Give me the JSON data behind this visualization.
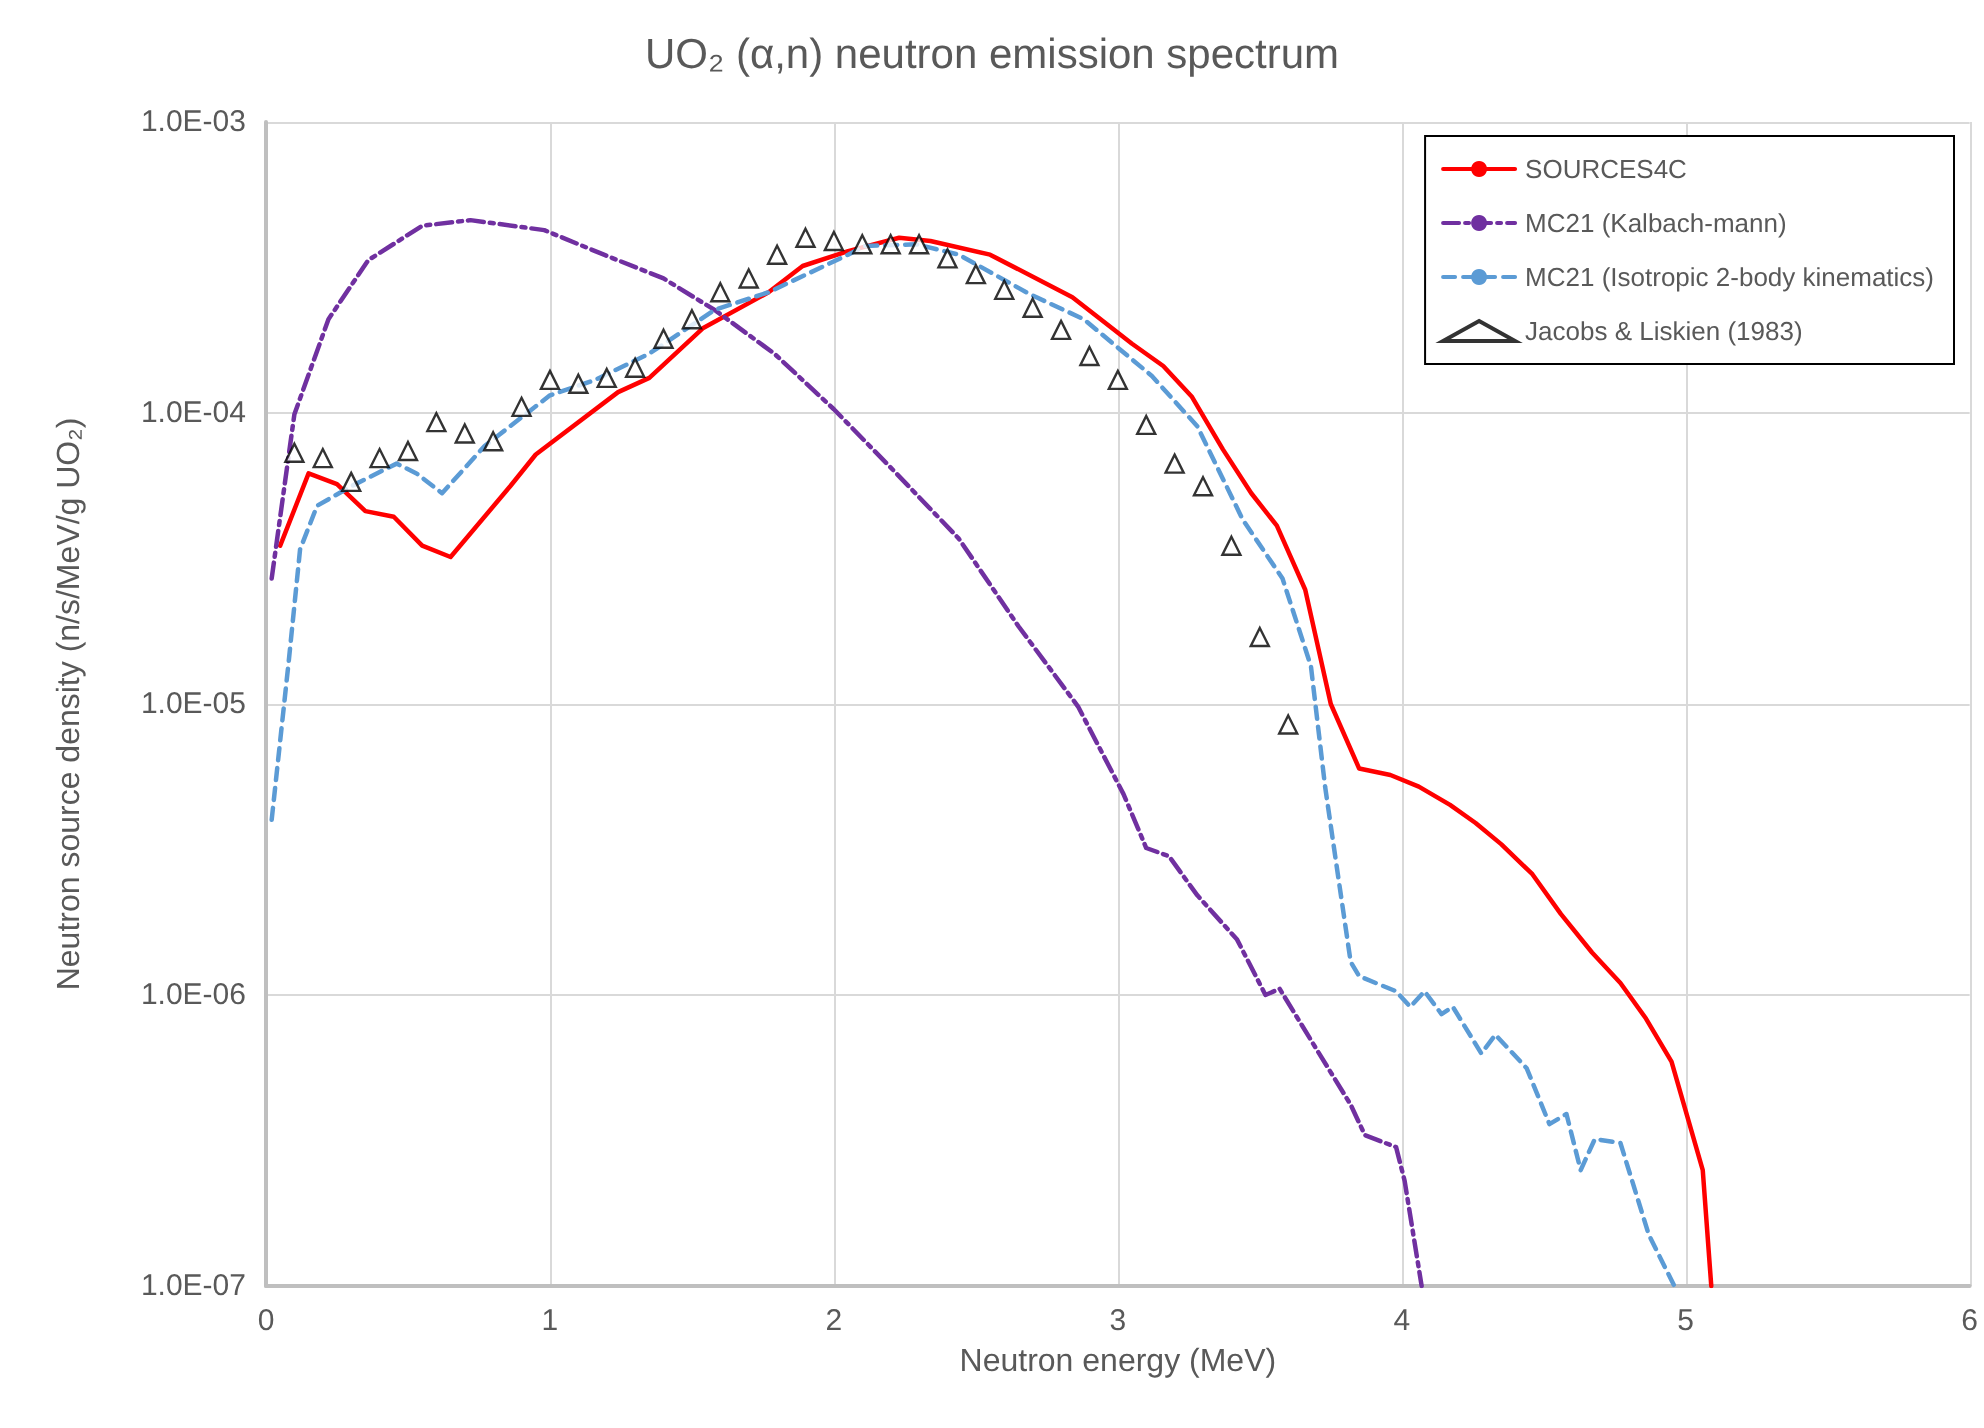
{
  "chart_data": {
    "type": "line",
    "title": "UO₂ (α,n) neutron emission spectrum",
    "xlabel": "Neutron energy (MeV)",
    "ylabel": "Neutron source density (n/s/MeV/g UO₂)",
    "xlim": [
      0,
      6
    ],
    "xticks": [
      0,
      1,
      2,
      3,
      4,
      5,
      6
    ],
    "ylim": [
      1e-07,
      0.001
    ],
    "yticks": [
      {
        "value": 1e-07,
        "label": "1.0E-07"
      },
      {
        "value": 1e-06,
        "label": "1.0E-06"
      },
      {
        "value": 1e-05,
        "label": "1.0E-05"
      },
      {
        "value": 0.0001,
        "label": "1.0E-04"
      },
      {
        "value": 0.001,
        "label": "1.0E-03"
      }
    ],
    "log": "y",
    "grid": true,
    "legend": "top right",
    "marker": "none",
    "series": [
      {
        "name": "SOURCES4C",
        "color": "#ff0000",
        "line_style": "solid",
        "x": [
          0.05,
          0.15,
          0.25,
          0.35,
          0.45,
          0.55,
          0.65,
          0.86,
          0.95,
          1.24,
          1.35,
          1.54,
          1.77,
          1.89,
          2.05,
          2.23,
          2.34,
          2.55,
          2.84,
          3.05,
          3.16,
          3.26,
          3.37,
          3.47,
          3.56,
          3.66,
          3.75,
          3.85,
          3.96,
          4.06,
          4.17,
          4.26,
          4.35,
          4.46,
          4.56,
          4.67,
          4.77,
          4.86,
          4.95,
          5.06,
          5.09
        ],
        "values": [
          3.5e-05,
          6.2e-05,
          5.7e-05,
          4.6e-05,
          4.4e-05,
          3.5e-05,
          3.2e-05,
          5.6e-05,
          7.2e-05,
          0.000118,
          0.000132,
          0.000196,
          0.00026,
          0.00032,
          0.00036,
          0.0004,
          0.00039,
          0.00035,
          0.00025,
          0.000173,
          0.000145,
          0.000114,
          7.5e-05,
          5.3e-05,
          4.1e-05,
          2.47e-05,
          1e-05,
          6e-06,
          5.7e-06,
          5.2e-06,
          4.5e-06,
          3.9e-06,
          3.3e-06,
          2.6e-06,
          1.9e-06,
          1.4e-06,
          1.1e-06,
          8.3e-07,
          5.9e-07,
          2.5e-07,
          1e-07
        ]
      },
      {
        "name": "MC21 (Kalbach-mann)",
        "color": "#7030a0",
        "line_style": "dashdot",
        "x": [
          0.02,
          0.1,
          0.22,
          0.36,
          0.55,
          0.72,
          0.98,
          1.19,
          1.4,
          1.58,
          1.79,
          2.0,
          2.22,
          2.44,
          2.65,
          2.86,
          3.02,
          3.1,
          3.18,
          3.28,
          3.42,
          3.52,
          3.57,
          3.68,
          3.82,
          3.87,
          3.98,
          4.01,
          4.07
        ],
        "values": [
          2.7e-05,
          9.9e-05,
          0.00021,
          0.000335,
          0.00044,
          0.00046,
          0.000425,
          0.00035,
          0.00029,
          0.000226,
          0.00016,
          0.000103,
          6.2e-05,
          3.7e-05,
          1.85e-05,
          9.8e-06,
          4.9e-06,
          3.2e-06,
          3e-06,
          2.2e-06,
          1.55e-06,
          1e-06,
          1.05e-06,
          7e-07,
          4.2e-07,
          3.3e-07,
          3e-07,
          2.3e-07,
          1e-07
        ]
      },
      {
        "name": "MC21 (Isotropic 2-body kinematics)",
        "color": "#5b9bd5",
        "line_style": "dashed",
        "x": [
          0.02,
          0.08,
          0.12,
          0.18,
          0.3,
          0.46,
          0.53,
          0.62,
          0.77,
          1.0,
          1.16,
          1.35,
          1.58,
          1.77,
          2.05,
          2.11,
          2.29,
          2.44,
          2.69,
          2.88,
          3.12,
          3.28,
          3.44,
          3.58,
          3.68,
          3.73,
          3.77,
          3.82,
          3.85,
          3.98,
          4.03,
          4.08,
          4.14,
          4.18,
          4.28,
          4.33,
          4.44,
          4.52,
          4.58,
          4.63,
          4.68,
          4.77,
          4.87,
          4.96
        ],
        "values": [
          4e-06,
          1.4e-05,
          3.4e-05,
          4.8e-05,
          5.6e-05,
          6.7e-05,
          6.2e-05,
          5.3e-05,
          7.7e-05,
          0.000115,
          0.00013,
          0.00016,
          0.000226,
          0.00026,
          0.00035,
          0.000375,
          0.00038,
          0.00035,
          0.000256,
          0.00021,
          0.000134,
          9e-05,
          4.3e-05,
          2.7e-05,
          1.35e-05,
          5.2e-06,
          2.8e-06,
          1.3e-06,
          1.16e-06,
          1.03e-06,
          9.1e-07,
          1.03e-06,
          8.6e-07,
          9.1e-07,
          6.3e-07,
          7.3e-07,
          5.6e-07,
          3.6e-07,
          3.9e-07,
          2.5e-07,
          3.2e-07,
          3.1e-07,
          1.5e-07,
          1e-07
        ]
      },
      {
        "name": "Jacobs & Liskien (1983)",
        "type": "scatter",
        "marker": "triangle",
        "color": "#000000",
        "x": [
          0.1,
          0.2,
          0.3,
          0.4,
          0.5,
          0.6,
          0.7,
          0.8,
          0.9,
          1.0,
          1.1,
          1.2,
          1.3,
          1.4,
          1.5,
          1.6,
          1.7,
          1.8,
          1.9,
          2.0,
          2.1,
          2.2,
          2.3,
          2.4,
          2.5,
          2.6,
          2.7,
          2.8,
          2.9,
          3.0,
          3.1,
          3.2,
          3.3,
          3.4,
          3.5,
          3.6
        ],
        "values": [
          7.3e-05,
          7e-05,
          5.8e-05,
          7e-05,
          7.4e-05,
          9.3e-05,
          8.5e-05,
          8e-05,
          0.000105,
          0.00013,
          0.000126,
          0.000132,
          0.000143,
          0.00018,
          0.00021,
          0.00026,
          0.00029,
          0.00035,
          0.0004,
          0.00039,
          0.00038,
          0.00038,
          0.00038,
          0.00034,
          0.0003,
          0.000265,
          0.00023,
          0.000193,
          0.000157,
          0.00013,
          9.1e-05,
          6.7e-05,
          5.6e-05,
          3.5e-05,
          1.7e-05,
          8.5e-06
        ]
      }
    ]
  }
}
